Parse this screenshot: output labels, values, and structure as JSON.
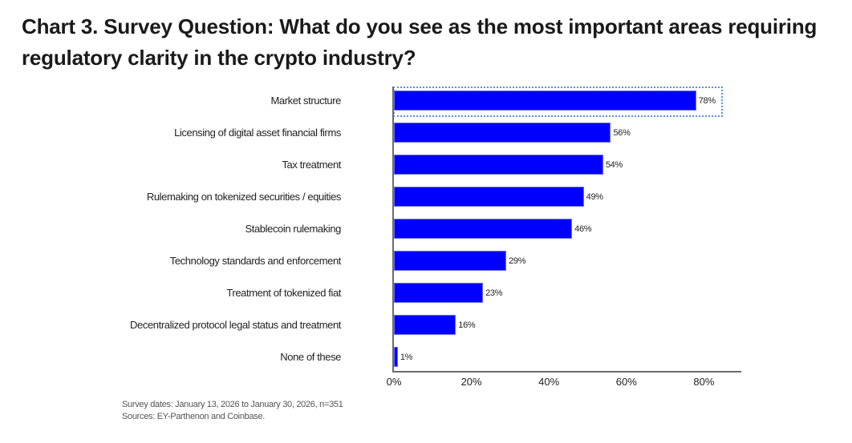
{
  "title": "Chart 3. Survey Question: What do you see as the most important areas requiring regulatory clarity in the crypto industry?",
  "footnotes": {
    "survey_dates": "Survey dates: January 13, 2026 to January 30, 2026, n=351",
    "sources": "Sources: EY-Parthenon and Coinbase."
  },
  "colors": {
    "bar": "#0000ff",
    "highlight_border": "#5b8ee6",
    "axis": "#6b6b6b"
  },
  "x_ticks": [
    "0%",
    "20%",
    "40%",
    "60%",
    "80%"
  ],
  "bars": [
    {
      "label": "Market structure",
      "value": 78,
      "display": "78%"
    },
    {
      "label": "Licensing of digital asset financial firms",
      "value": 56,
      "display": "56%"
    },
    {
      "label": "Tax treatment",
      "value": 54,
      "display": "54%"
    },
    {
      "label": "Rulemaking on tokenized securities / equities",
      "value": 49,
      "display": "49%"
    },
    {
      "label": "Stablecoin rulemaking",
      "value": 46,
      "display": "46%"
    },
    {
      "label": "Technology standards and enforcement",
      "value": 29,
      "display": "29%"
    },
    {
      "label": "Treatment of tokenized fiat",
      "value": 23,
      "display": "23%"
    },
    {
      "label": "Decentralized protocol legal status and treatment",
      "value": 16,
      "display": "16%"
    },
    {
      "label": "None of these",
      "value": 1,
      "display": "1%"
    }
  ],
  "chart_data": {
    "type": "bar",
    "orientation": "horizontal",
    "title": "Chart 3. Survey Question: What do you see as the most important areas requiring regulatory clarity in the crypto industry?",
    "categories": [
      "Market structure",
      "Licensing of digital asset financial firms",
      "Tax treatment",
      "Rulemaking on tokenized securities / equities",
      "Stablecoin rulemaking",
      "Technology standards and enforcement",
      "Treatment of tokenized fiat",
      "Decentralized protocol legal status and treatment",
      "None of these"
    ],
    "values": [
      78,
      56,
      54,
      49,
      46,
      29,
      23,
      16,
      1
    ],
    "value_labels": [
      "78%",
      "56%",
      "54%",
      "49%",
      "46%",
      "29%",
      "23%",
      "16%",
      "1%"
    ],
    "xlabel": "",
    "ylabel": "",
    "xlim": [
      0,
      90
    ],
    "x_ticks": [
      "0%",
      "20%",
      "40%",
      "60%",
      "80%"
    ],
    "grid": false,
    "legend": null,
    "highlighted_category": "Market structure",
    "annotations": [
      "Survey dates: January 13, 2026 to January 30, 2026, n=351",
      "Sources: EY-Parthenon and Coinbase."
    ]
  }
}
